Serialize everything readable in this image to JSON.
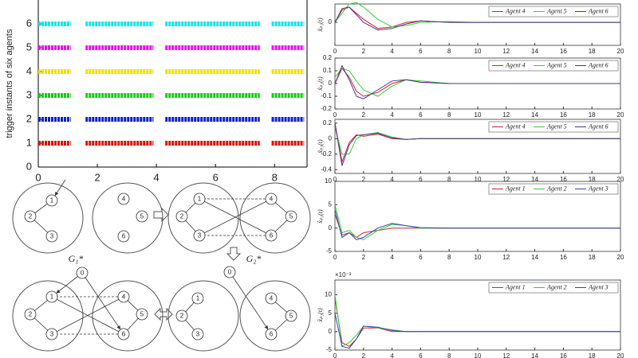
{
  "chart_data": [
    {
      "type": "event",
      "ylabel": "trigger instants of six agents",
      "xlim": [
        0,
        9.1
      ],
      "ylim": [
        0,
        7
      ],
      "xticks": [
        0,
        2,
        4,
        6,
        8
      ],
      "yticks": [
        0,
        1,
        2,
        3,
        4,
        5,
        6
      ],
      "series": [
        {
          "color": "#e01010",
          "level": 1,
          "intervals": [
            [
              0,
              1.1
            ],
            [
              1.6,
              3.9
            ],
            [
              4.3,
              7.5
            ],
            [
              7.9,
              9.0
            ]
          ]
        },
        {
          "color": "#1020d0",
          "level": 2,
          "intervals": [
            [
              0,
              1.1
            ],
            [
              1.6,
              3.9
            ],
            [
              4.3,
              7.5
            ],
            [
              7.9,
              9.0
            ]
          ]
        },
        {
          "color": "#10d010",
          "level": 3,
          "intervals": [
            [
              0,
              1.1
            ],
            [
              1.6,
              3.9
            ],
            [
              4.3,
              7.5
            ],
            [
              7.9,
              9.0
            ]
          ]
        },
        {
          "color": "#f0e000",
          "level": 4,
          "intervals": [
            [
              0,
              1.1
            ],
            [
              1.6,
              3.9
            ],
            [
              4.3,
              7.5
            ],
            [
              7.9,
              9.0
            ]
          ]
        },
        {
          "color": "#f010f0",
          "level": 5,
          "intervals": [
            [
              0,
              1.1
            ],
            [
              1.6,
              3.9
            ],
            [
              4.3,
              7.5
            ],
            [
              7.9,
              9.0
            ]
          ]
        },
        {
          "color": "#10e8e8",
          "level": 6,
          "intervals": [
            [
              0,
              1.1
            ],
            [
              1.6,
              3.9
            ],
            [
              4.3,
              7.5
            ],
            [
              7.9,
              9.0
            ]
          ]
        }
      ]
    },
    {
      "type": "line",
      "ylabel": "x̃ₚ₁(t)",
      "legend": "top-right",
      "xlim": [
        0,
        20
      ],
      "ylim": [
        -0.15,
        0.12
      ],
      "xticks": [
        0,
        2,
        4,
        6,
        8,
        10,
        12,
        14,
        16,
        18,
        20
      ],
      "yticks": [
        0
      ],
      "x": [
        0,
        0.5,
        1,
        1.5,
        2,
        3,
        4,
        5,
        6,
        8,
        10,
        14,
        20
      ],
      "series": [
        {
          "name": "Agent 4",
          "color": "#d02030",
          "values": [
            0,
            0.08,
            0.1,
            0.06,
            0.02,
            -0.04,
            -0.03,
            0,
            0.01,
            0,
            0,
            0,
            0
          ]
        },
        {
          "name": "Agent 5",
          "color": "#30d030",
          "values": [
            0,
            0.06,
            0.12,
            0.13,
            0.1,
            0.02,
            -0.03,
            -0.02,
            0,
            0.005,
            0,
            0,
            0
          ]
        },
        {
          "name": "Agent 6",
          "color": "#503090",
          "values": [
            0,
            0.09,
            0.1,
            0.05,
            0,
            -0.05,
            -0.04,
            -0.01,
            0.01,
            0,
            0,
            0,
            0
          ]
        }
      ]
    },
    {
      "type": "line",
      "ylabel": "x̃ₚ₂(t)",
      "legend": "top-right",
      "xlim": [
        0,
        20
      ],
      "ylim": [
        -0.2,
        0.2
      ],
      "xticks": [
        0,
        2,
        4,
        6,
        8,
        10,
        12,
        14,
        16,
        18,
        20
      ],
      "yticks": [
        -0.2,
        -0.1,
        0,
        0.1,
        0.2
      ],
      "x": [
        0,
        0.5,
        1,
        1.5,
        2,
        3,
        4,
        5,
        6,
        8,
        10,
        14,
        20
      ],
      "series": [
        {
          "name": "Agent 4",
          "color": "#d02030",
          "values": [
            0,
            0.12,
            0.05,
            -0.06,
            -0.1,
            -0.07,
            0,
            0.03,
            0.01,
            0,
            0,
            0,
            0
          ]
        },
        {
          "name": "Agent 5",
          "color": "#30d030",
          "values": [
            0.05,
            0.12,
            0.1,
            0.02,
            -0.05,
            -0.1,
            -0.02,
            0.03,
            0.02,
            0,
            0,
            0,
            0
          ]
        },
        {
          "name": "Agent 6",
          "color": "#503090",
          "values": [
            0,
            0.14,
            0.03,
            -0.1,
            -0.12,
            -0.05,
            0.02,
            0.03,
            0.01,
            0,
            0,
            0,
            0
          ]
        }
      ]
    },
    {
      "type": "line",
      "ylabel": "x̃ₚ₃(t)",
      "legend": "top-right",
      "xlim": [
        0,
        20
      ],
      "ylim": [
        -0.45,
        0.25
      ],
      "xticks": [
        0,
        2,
        4,
        6,
        8,
        10,
        12,
        14,
        16,
        18,
        20
      ],
      "yticks": [
        -0.4,
        -0.2,
        0,
        0.2
      ],
      "x": [
        0,
        0.5,
        1,
        1.5,
        2,
        3,
        4,
        5,
        6,
        8,
        10,
        14,
        20
      ],
      "series": [
        {
          "name": "Agent 4",
          "color": "#d02030",
          "values": [
            0.2,
            -0.3,
            -0.05,
            0.05,
            0.03,
            0.06,
            0,
            -0.01,
            0,
            0,
            0,
            0,
            0
          ]
        },
        {
          "name": "Agent 5",
          "color": "#30d030",
          "values": [
            0.15,
            -0.2,
            -0.2,
            0,
            0.05,
            0.08,
            0.02,
            -0.01,
            0,
            0,
            0,
            0,
            0
          ]
        },
        {
          "name": "Agent 6",
          "color": "#503090",
          "values": [
            0.2,
            -0.35,
            -0.08,
            0.04,
            0.05,
            0.07,
            0.01,
            -0.01,
            0,
            0,
            0,
            0,
            0
          ]
        }
      ]
    },
    {
      "type": "line",
      "ylabel": "x̂ₚ₁(t)",
      "legend": "top-right",
      "xlim": [
        0,
        20
      ],
      "ylim": [
        -5,
        10
      ],
      "xticks": [
        0,
        2,
        4,
        6,
        8,
        10,
        12,
        14,
        16,
        18,
        20
      ],
      "yticks": [
        -5,
        0,
        5,
        10
      ],
      "x": [
        0,
        0.5,
        1,
        1.5,
        2,
        3,
        4,
        5,
        6,
        8,
        10,
        14,
        20
      ],
      "series": [
        {
          "name": "Agent 1",
          "color": "#d02030",
          "values": [
            3,
            -1.5,
            -1,
            -2,
            -1,
            -0.5,
            0,
            0,
            0,
            0,
            0,
            0,
            0
          ]
        },
        {
          "name": "Agent 2",
          "color": "#30d030",
          "values": [
            5,
            -1,
            -0.5,
            -2,
            -2.5,
            -0.5,
            0.8,
            0.5,
            0,
            0,
            0,
            0,
            0
          ]
        },
        {
          "name": "Agent 3",
          "color": "#3040c0",
          "values": [
            4,
            -2,
            -1,
            -2.5,
            -2,
            0,
            1,
            0.5,
            0.1,
            0,
            0,
            0,
            0
          ]
        }
      ]
    },
    {
      "type": "line",
      "ylabel": "x̂ₚ₂(t)",
      "legend": "top-right",
      "annotation": "×10⁻³",
      "xlim": [
        0,
        20
      ],
      "ylim": [
        -5,
        14
      ],
      "xticks": [
        0,
        2,
        4,
        6,
        8,
        10,
        12,
        14,
        16,
        18,
        20
      ],
      "yticks": [
        -5,
        0,
        5,
        10
      ],
      "x": [
        0,
        0.5,
        1,
        1.5,
        2,
        3,
        4,
        5,
        6,
        8,
        10,
        14,
        20
      ],
      "series": [
        {
          "name": "Agent 1",
          "color": "#d02030",
          "values": [
            9,
            -3,
            -4,
            -2,
            1,
            1,
            0,
            0,
            0,
            0,
            0,
            0,
            0
          ]
        },
        {
          "name": "Agent 2",
          "color": "#30d030",
          "values": [
            10,
            -4,
            -3,
            -1,
            1.5,
            1,
            0.5,
            0,
            0,
            0,
            0,
            0,
            0
          ]
        },
        {
          "name": "Agent 3",
          "color": "#3040c0",
          "values": [
            5,
            -4,
            -4.5,
            -2,
            1.5,
            1.2,
            0.3,
            0,
            0,
            0,
            0,
            0,
            0
          ]
        }
      ]
    }
  ],
  "diagram": {
    "nodes": [
      "0",
      "1",
      "2",
      "3",
      "4",
      "5",
      "6"
    ],
    "labels": [
      "G₁*",
      "G₂*"
    ]
  }
}
